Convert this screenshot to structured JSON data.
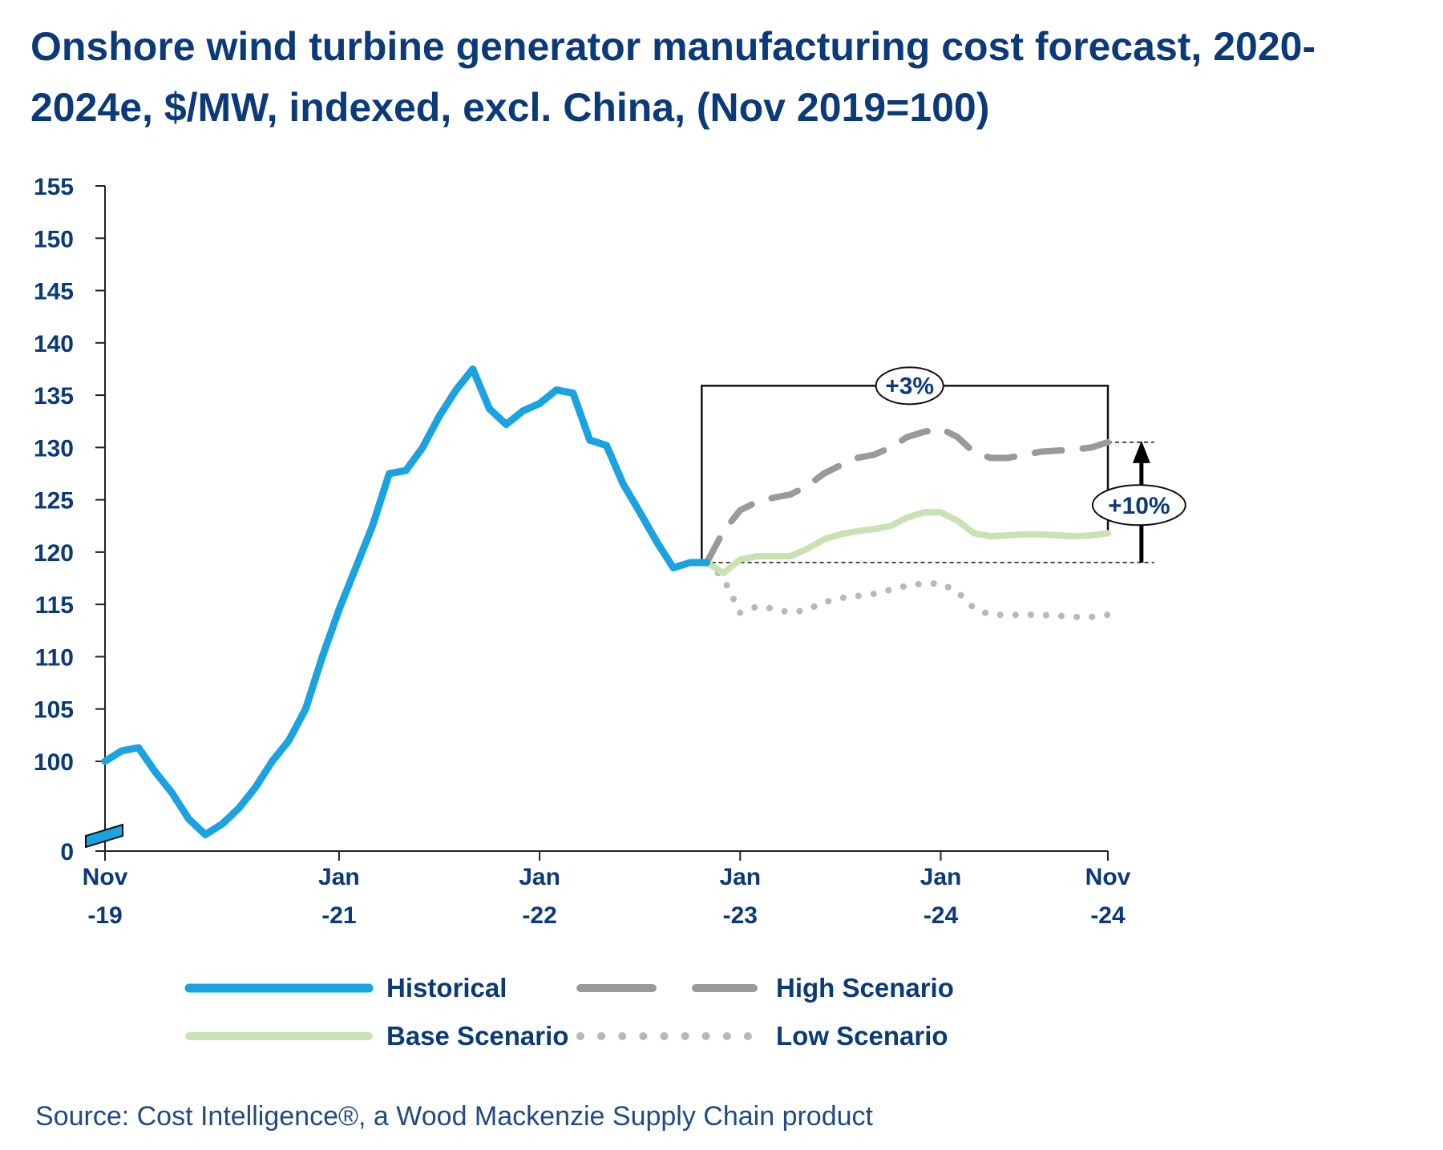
{
  "title": "Onshore wind turbine generator manufacturing cost forecast,  2020-2024e, $/MW, indexed, excl. China, (Nov 2019=100)",
  "source": "Source: Cost Intelligence®, a Wood Mackenzie Supply Chain product",
  "colors": {
    "text": "#0b3a7a",
    "historical": "#1aa3e0",
    "high": "#9a9a9a",
    "base": "#c8e2b4",
    "low": "#b8b8b8"
  },
  "chart_data": {
    "type": "line",
    "title": "Onshore wind turbine generator manufacturing cost forecast,  2020-2024e, $/MW, indexed, excl. China, (Nov 2019=100)",
    "x_unit": "month index (0 = Nov 2019)",
    "xlim": [
      0,
      60
    ],
    "ylim": [
      100,
      155
    ],
    "y_break": true,
    "y_ticks": [
      "0",
      "100",
      "105",
      "110",
      "115",
      "120",
      "125",
      "130",
      "135",
      "140",
      "145",
      "150",
      "155"
    ],
    "x_ticks": [
      {
        "x": 0,
        "line1": "Nov",
        "line2": "-19"
      },
      {
        "x": 14,
        "line1": "Jan",
        "line2": "-21"
      },
      {
        "x": 26,
        "line1": "Jan",
        "line2": "-22"
      },
      {
        "x": 38,
        "line1": "Jan",
        "line2": "-23"
      },
      {
        "x": 50,
        "line1": "Jan",
        "line2": "-24"
      },
      {
        "x": 60,
        "line1": "Nov",
        "line2": "-24"
      }
    ],
    "legend_position": "bottom",
    "series": [
      {
        "name": "Historical",
        "style": "solid",
        "x": [
          0,
          1,
          2,
          3,
          4,
          5,
          6,
          7,
          8,
          9,
          10,
          11,
          12,
          13,
          14,
          15,
          16,
          17,
          18,
          19,
          20,
          21,
          22,
          23,
          24,
          25,
          26,
          27,
          28,
          29,
          30,
          31,
          32,
          33,
          34,
          35,
          36
        ],
        "y": [
          100,
          101,
          101.3,
          99,
          97,
          94.5,
          93,
          94,
          95.5,
          97.5,
          100,
          102,
          105,
          110,
          114.5,
          118.5,
          122.5,
          127.5,
          127.8,
          130,
          133,
          135.5,
          137.5,
          133.7,
          132.2,
          133.5,
          134.2,
          135.5,
          135.2,
          130.7,
          130.2,
          126.5,
          123.8,
          121,
          118.5,
          119,
          119
        ]
      },
      {
        "name": "High Scenario",
        "style": "dashed",
        "x": [
          36,
          37,
          38,
          39,
          40,
          41,
          42,
          43,
          44,
          45,
          46,
          47,
          48,
          49,
          50,
          51,
          52,
          53,
          54,
          55,
          56,
          57,
          58,
          59,
          60
        ],
        "y": [
          119,
          122,
          124,
          124.8,
          125.2,
          125.5,
          126.3,
          127.5,
          128.3,
          129,
          129.3,
          130,
          131,
          131.5,
          131.8,
          131,
          129.5,
          129,
          129,
          129.3,
          129.6,
          129.7,
          129.8,
          130,
          130.5
        ]
      },
      {
        "name": "Base Scenario",
        "style": "solid",
        "x": [
          36,
          37,
          38,
          39,
          40,
          41,
          42,
          43,
          44,
          45,
          46,
          47,
          48,
          49,
          50,
          51,
          52,
          53,
          54,
          55,
          56,
          57,
          58,
          59,
          60
        ],
        "y": [
          119,
          118,
          119.3,
          119.6,
          119.6,
          119.6,
          120.3,
          121.2,
          121.7,
          122,
          122.2,
          122.5,
          123.3,
          123.8,
          123.8,
          123,
          121.8,
          121.5,
          121.6,
          121.7,
          121.7,
          121.6,
          121.5,
          121.6,
          121.8
        ]
      },
      {
        "name": "Low Scenario",
        "style": "dotted",
        "x": [
          36,
          37,
          38,
          39,
          40,
          41,
          42,
          43,
          44,
          45,
          46,
          47,
          48,
          49,
          50,
          51,
          52,
          53,
          54,
          55,
          56,
          57,
          58,
          59,
          60
        ],
        "y": [
          119,
          117.5,
          114.2,
          114.8,
          114.6,
          114.2,
          114.5,
          115.2,
          115.6,
          115.8,
          116,
          116.4,
          116.8,
          117,
          117,
          116.2,
          114.6,
          114,
          114,
          114,
          114,
          113.9,
          113.8,
          113.8,
          114
        ]
      }
    ],
    "annotations": [
      {
        "label": "+3%",
        "type": "bracket",
        "from_x": 35.7,
        "to_x": 60,
        "at_y": 135.9,
        "left_end_y": 119,
        "right_end_y": 121.8
      },
      {
        "label": "+10%",
        "type": "arrow",
        "x": 61,
        "from_y": 119,
        "to_y": 130.5,
        "label_y": 124.8
      }
    ]
  }
}
